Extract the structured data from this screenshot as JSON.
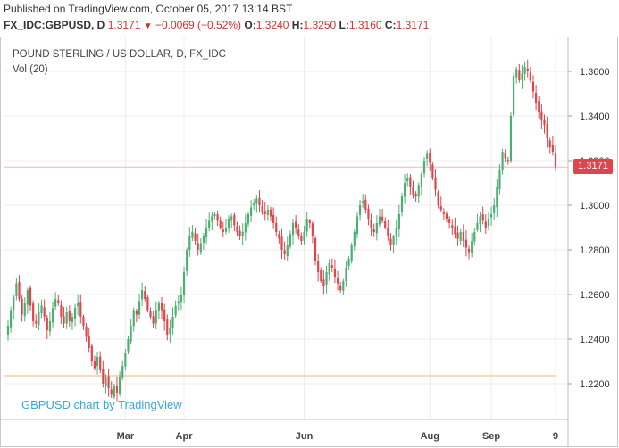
{
  "header": {
    "published": "Published on TradingView.com, October 05, 2017 13:14 BST",
    "symbol": "FX_IDC:GBPUSD, D",
    "last": "1.3171",
    "change": "−0.0069 (−0.52%)",
    "o_label": "O:",
    "o_value": "1.3240",
    "h_label": "H:",
    "h_value": "1.3250",
    "l_label": "L:",
    "l_value": "1.3160",
    "c_label": "C:",
    "c_value": "1.3171"
  },
  "legend": {
    "title": "POUND STERLING / US DOLLAR, D, FX_IDC",
    "volume": "Vol (20)"
  },
  "watermark": "GBPUSD chart by TradingView",
  "price_tag": "1.3171",
  "colors": {
    "up": "#4caf72",
    "down": "#e0454c",
    "grid": "#ececec",
    "hline_price": "#f4b6b6",
    "hline_ma": "#f7c28f"
  },
  "chart_data": {
    "type": "candlestick",
    "ylim": [
      1.208,
      1.368
    ],
    "yticks": [
      "1.2200",
      "1.2400",
      "1.2600",
      "1.2800",
      "1.3000",
      "1.3200",
      "1.3400",
      "1.3600"
    ],
    "xticks": [
      {
        "label": "Mar",
        "index": 42
      },
      {
        "label": "Apr",
        "index": 63
      },
      {
        "label": "Jun",
        "index": 106
      },
      {
        "label": "Aug",
        "index": 151
      },
      {
        "label": "Sep",
        "index": 173
      },
      {
        "label": "9",
        "index": 196
      }
    ],
    "last_price": 1.3171,
    "reference_level": 1.2236,
    "closes": [
      1.246,
      1.253,
      1.259,
      1.265,
      1.258,
      1.251,
      1.256,
      1.262,
      1.255,
      1.248,
      1.247,
      1.252,
      1.255,
      1.25,
      1.244,
      1.248,
      1.254,
      1.258,
      1.256,
      1.25,
      1.247,
      1.252,
      1.248,
      1.25,
      1.254,
      1.256,
      1.25,
      1.246,
      1.241,
      1.236,
      1.23,
      1.227,
      1.232,
      1.226,
      1.22,
      1.223,
      1.218,
      1.215,
      1.219,
      1.216,
      1.223,
      1.228,
      1.234,
      1.24,
      1.246,
      1.253,
      1.251,
      1.257,
      1.262,
      1.258,
      1.253,
      1.25,
      1.247,
      1.253,
      1.256,
      1.253,
      1.248,
      1.242,
      1.245,
      1.25,
      1.255,
      1.257,
      1.26,
      1.27,
      1.28,
      1.286,
      1.288,
      1.284,
      1.28,
      1.283,
      1.286,
      1.29,
      1.293,
      1.295,
      1.296,
      1.293,
      1.29,
      1.288,
      1.29,
      1.294,
      1.295,
      1.291,
      1.288,
      1.286,
      1.288,
      1.292,
      1.296,
      1.299,
      1.301,
      1.303,
      1.3,
      1.297,
      1.296,
      1.298,
      1.295,
      1.292,
      1.288,
      1.285,
      1.28,
      1.278,
      1.282,
      1.287,
      1.292,
      1.29,
      1.286,
      1.284,
      1.288,
      1.294,
      1.292,
      1.286,
      1.275,
      1.27,
      1.266,
      1.264,
      1.27,
      1.274,
      1.272,
      1.268,
      1.265,
      1.262,
      1.266,
      1.272,
      1.276,
      1.282,
      1.288,
      1.295,
      1.3,
      1.302,
      1.298,
      1.294,
      1.29,
      1.288,
      1.292,
      1.295,
      1.293,
      1.29,
      1.286,
      1.282,
      1.286,
      1.29,
      1.296,
      1.304,
      1.31,
      1.312,
      1.308,
      1.305,
      1.304,
      1.309,
      1.314,
      1.32,
      1.323,
      1.319,
      1.312,
      1.307,
      1.3,
      1.298,
      1.296,
      1.294,
      1.292,
      1.29,
      1.287,
      1.285,
      1.288,
      1.284,
      1.281,
      1.279,
      1.284,
      1.288,
      1.292,
      1.295,
      1.293,
      1.29,
      1.294,
      1.296,
      1.3,
      1.308,
      1.316,
      1.324,
      1.321,
      1.32,
      1.34,
      1.358,
      1.361,
      1.356,
      1.359,
      1.362,
      1.36,
      1.356,
      1.351,
      1.346,
      1.342,
      1.338,
      1.336,
      1.33,
      1.326,
      1.324,
      1.3171
    ]
  }
}
